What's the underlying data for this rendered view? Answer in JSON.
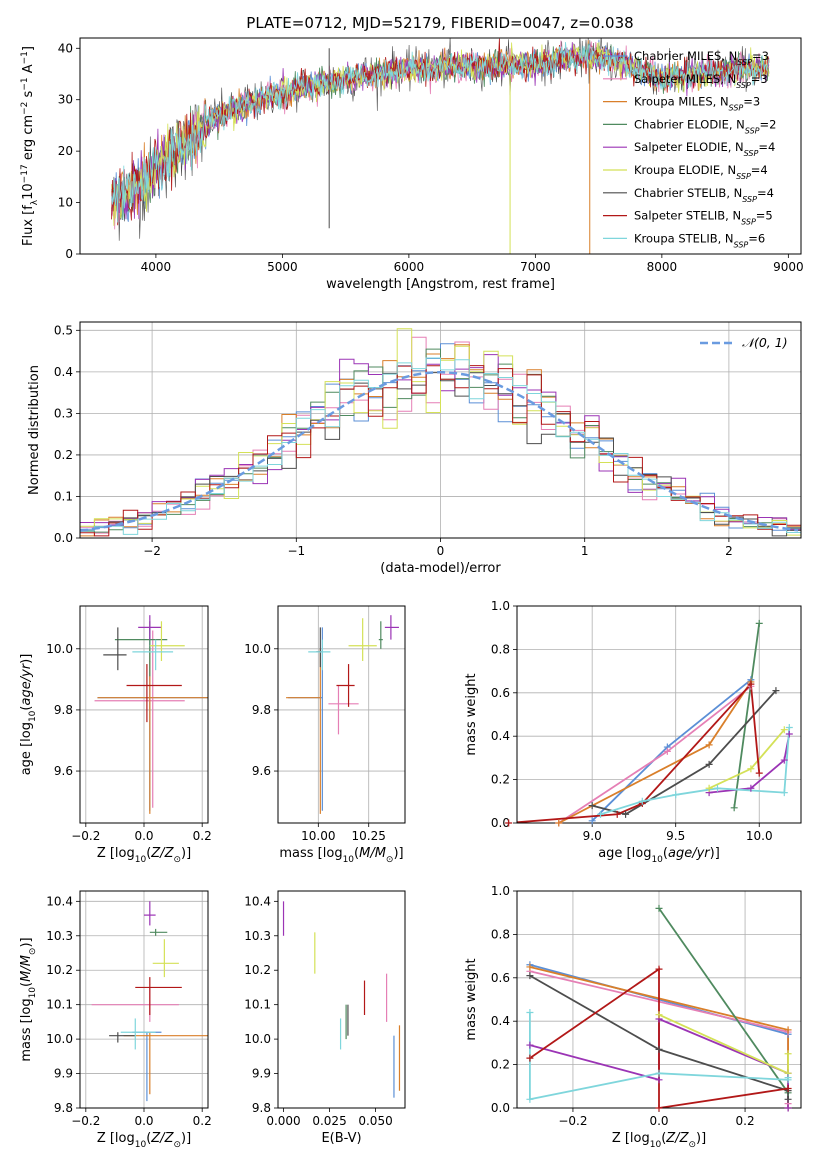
{
  "figure": {
    "title": "PLATE=0712, MJD=52179, FIBERID=0047, z=0.038"
  },
  "models": [
    {
      "name": "Chabrier MILES",
      "nssp": "3",
      "color": "#5b8fd6"
    },
    {
      "name": "Salpeter MILES",
      "nssp": "3",
      "color": "#e57fb5"
    },
    {
      "name": "Kroupa MILES",
      "nssp": "3",
      "color": "#d97f2a"
    },
    {
      "name": "Chabrier ELODIE",
      "nssp": "2",
      "color": "#4f8a5f"
    },
    {
      "name": "Salpeter ELODIE",
      "nssp": "4",
      "color": "#9b34b5"
    },
    {
      "name": "Kroupa ELODIE",
      "nssp": "4",
      "color": "#d4e157"
    },
    {
      "name": "Chabrier STELIB",
      "nssp": "4",
      "color": "#4d4d4d"
    },
    {
      "name": "Salpeter STELIB",
      "nssp": "5",
      "color": "#b21818"
    },
    {
      "name": "Kroupa STELIB",
      "nssp": "6",
      "color": "#7fd6dc"
    }
  ],
  "chart_data": [
    {
      "id": "spectrum",
      "type": "line",
      "xlabel": "wavelength [Angstrom, rest frame]",
      "ylabel": "Flux [f_λ 10^-17 erg cm^-2 s^-1 A^-1]",
      "xlim": [
        3400,
        9100
      ],
      "ylim": [
        0,
        42
      ],
      "xticks": [
        4000,
        5000,
        6000,
        7000,
        8000,
        9000
      ],
      "yticks": [
        0,
        10,
        20,
        30,
        40
      ],
      "data_range": [
        3650,
        8850
      ],
      "legend_position": "right",
      "continuum_knots": [
        [
          3650,
          10
        ],
        [
          3800,
          12
        ],
        [
          3950,
          15
        ],
        [
          4100,
          19
        ],
        [
          4300,
          23
        ],
        [
          4500,
          27
        ],
        [
          4700,
          29
        ],
        [
          4900,
          30.5
        ],
        [
          5100,
          32
        ],
        [
          5300,
          33
        ],
        [
          5600,
          34.5
        ],
        [
          6000,
          36
        ],
        [
          6500,
          36.5
        ],
        [
          7000,
          37
        ],
        [
          7400,
          38.5
        ],
        [
          7600,
          38
        ],
        [
          7800,
          36
        ],
        [
          8000,
          34
        ],
        [
          8300,
          35
        ],
        [
          8600,
          36
        ],
        [
          8850,
          36
        ]
      ],
      "spikes": [
        {
          "x": 5370,
          "y_from": 40,
          "y_to": 5,
          "series": "Chabrier STELIB"
        },
        {
          "x": 6800,
          "y_from": 35,
          "y_to": 0,
          "series": "Kroupa ELODIE"
        },
        {
          "x": 7430,
          "y_from": 37,
          "y_to": 0,
          "series": "Kroupa MILES"
        }
      ]
    },
    {
      "id": "residual-histogram",
      "type": "line",
      "xlabel": "(data-model)/error",
      "ylabel": "Normed distribution",
      "xlim": [
        -2.5,
        2.5
      ],
      "ylim": [
        0,
        0.52
      ],
      "xticks": [
        -2,
        -1,
        0,
        1,
        2
      ],
      "yticks": [
        0.0,
        0.1,
        0.2,
        0.3,
        0.4,
        0.5
      ],
      "grid": true,
      "legend_position": "top-right",
      "reference_curve": {
        "name": "𝒩(0, 1)",
        "color": "#6a9be0",
        "mean": 0,
        "sigma": 1
      },
      "bin_width": 0.1
    },
    {
      "id": "age-vs-Z",
      "type": "scatter",
      "xlabel": "Z [log10(Z/Z☉)]",
      "ylabel": "age [log10(age/yr)]",
      "xlim": [
        -0.22,
        0.22
      ],
      "ylim": [
        9.43,
        10.14
      ],
      "xticks": [
        -0.2,
        0.0,
        0.2
      ],
      "yticks": [
        9.6,
        9.8,
        10.0
      ],
      "grid": true,
      "points": [
        {
          "model": 0,
          "x": 0.02,
          "y": 9.84,
          "xerr": [
            0.18,
            0.2
          ],
          "yerr": [
            0.37,
            0.23
          ]
        },
        {
          "model": 1,
          "x": 0.03,
          "y": 9.83,
          "xerr": [
            0.2,
            0.11
          ],
          "yerr": [
            0.35,
            0.23
          ]
        },
        {
          "model": 2,
          "x": 0.02,
          "y": 9.84,
          "xerr": [
            0.18,
            0.2
          ],
          "yerr": [
            0.38,
            0.16
          ]
        },
        {
          "model": 3,
          "x": 0.02,
          "y": 10.03,
          "xerr": [
            0.12,
            0.06
          ],
          "yerr": [
            0.12,
            0.06
          ]
        },
        {
          "model": 4,
          "x": 0.02,
          "y": 10.07,
          "xerr": [
            0.04,
            0.04
          ],
          "yerr": [
            0.04,
            0.04
          ]
        },
        {
          "model": 5,
          "x": 0.06,
          "y": 10.01,
          "xerr": [
            0.04,
            0.08
          ],
          "yerr": [
            0.05,
            0.08
          ]
        },
        {
          "model": 6,
          "x": -0.09,
          "y": 9.98,
          "xerr": [
            0.05,
            0.03
          ],
          "yerr": [
            0.05,
            0.09
          ]
        },
        {
          "model": 7,
          "x": 0.01,
          "y": 9.88,
          "xerr": [
            0.07,
            0.12
          ],
          "yerr": [
            0.12,
            0.07
          ]
        },
        {
          "model": 8,
          "x": 0.04,
          "y": 9.99,
          "xerr": [
            0.08,
            0.06
          ],
          "yerr": [
            0.06,
            0.04
          ]
        }
      ]
    },
    {
      "id": "age-vs-mass",
      "type": "scatter",
      "xlabel": "mass [log10(M/M☉)]",
      "ylabel": "",
      "xlim": [
        9.8,
        10.43
      ],
      "ylim": [
        9.43,
        10.14
      ],
      "xticks": [
        10.0,
        10.25
      ],
      "yticks": [
        9.6,
        9.8,
        10.0
      ],
      "grid": true,
      "points": [
        {
          "model": 0,
          "x": 10.02,
          "y": 9.84,
          "xerr": [
            0.17,
            0.0
          ],
          "yerr": [
            0.37,
            0.23
          ]
        },
        {
          "model": 1,
          "x": 10.1,
          "y": 9.82,
          "xerr": [
            0.05,
            0.1
          ],
          "yerr": [
            0.1,
            0.06
          ]
        },
        {
          "model": 2,
          "x": 10.01,
          "y": 9.84,
          "xerr": [
            0.17,
            0.0
          ],
          "yerr": [
            0.38,
            0.16
          ]
        },
        {
          "model": 3,
          "x": 10.31,
          "y": 10.03,
          "xerr": [
            0.01,
            0.01
          ],
          "yerr": [
            0.03,
            0.06
          ]
        },
        {
          "model": 4,
          "x": 10.36,
          "y": 10.07,
          "xerr": [
            0.03,
            0.04
          ],
          "yerr": [
            0.04,
            0.04
          ]
        },
        {
          "model": 5,
          "x": 10.22,
          "y": 10.01,
          "xerr": [
            0.07,
            0.07
          ],
          "yerr": [
            0.05,
            0.09
          ]
        },
        {
          "model": 6,
          "x": 10.01,
          "y": 9.99,
          "xerr": [
            0.02,
            0.01
          ],
          "yerr": [
            0.05,
            0.08
          ]
        },
        {
          "model": 7,
          "x": 10.15,
          "y": 9.88,
          "xerr": [
            0.06,
            0.03
          ],
          "yerr": [
            0.07,
            0.07
          ]
        },
        {
          "model": 8,
          "x": 10.02,
          "y": 9.99,
          "xerr": [
            0.07,
            0.04
          ],
          "yerr": [
            0.06,
            0.04
          ]
        }
      ]
    },
    {
      "id": "massweight-vs-age",
      "type": "line",
      "xlabel": "age [log10(age/yr)]",
      "ylabel": "mass weight",
      "xlim": [
        8.55,
        10.25
      ],
      "ylim": [
        0,
        1
      ],
      "xticks": [
        9.0,
        9.5,
        10.0
      ],
      "yticks": [
        0.0,
        0.2,
        0.4,
        0.6,
        0.8,
        1.0
      ],
      "grid": true,
      "series": [
        {
          "model": 0,
          "x": [
            9.0,
            9.45,
            9.95
          ],
          "y": [
            0.01,
            0.35,
            0.66
          ]
        },
        {
          "model": 1,
          "x": [
            8.8,
            9.45,
            9.95
          ],
          "y": [
            0.0,
            0.33,
            0.63
          ]
        },
        {
          "model": 2,
          "x": [
            8.8,
            9.7,
            9.95
          ],
          "y": [
            0.0,
            0.36,
            0.65
          ]
        },
        {
          "model": 3,
          "x": [
            9.85,
            10.0
          ],
          "y": [
            0.07,
            0.92
          ]
        },
        {
          "model": 4,
          "x": [
            9.7,
            9.95,
            10.15,
            10.18
          ],
          "y": [
            0.14,
            0.16,
            0.29,
            0.41
          ]
        },
        {
          "model": 5,
          "x": [
            9.7,
            9.95,
            10.15
          ],
          "y": [
            0.16,
            0.25,
            0.43
          ]
        },
        {
          "model": 6,
          "x": [
            9.0,
            9.2,
            9.7,
            10.1
          ],
          "y": [
            0.08,
            0.04,
            0.27,
            0.61
          ]
        },
        {
          "model": 7,
          "x": [
            8.5,
            9.15,
            9.3,
            9.95,
            10.0
          ],
          "y": [
            0.0,
            0.04,
            0.09,
            0.64,
            0.23
          ]
        },
        {
          "model": 8,
          "x": [
            9.05,
            9.3,
            9.5,
            9.75,
            10.15,
            10.18
          ],
          "y": [
            0.04,
            0.1,
            0.13,
            0.16,
            0.14,
            0.44
          ]
        }
      ]
    },
    {
      "id": "mass-vs-Z",
      "type": "scatter",
      "xlabel": "Z [log10(Z/Z☉)]",
      "ylabel": "mass [log10(M/M☉)]",
      "xlim": [
        -0.22,
        0.22
      ],
      "ylim": [
        9.8,
        10.43
      ],
      "xticks": [
        -0.2,
        0.0,
        0.2
      ],
      "yticks": [
        9.8,
        9.9,
        10.0,
        10.1,
        10.2,
        10.3,
        10.4
      ],
      "grid": true,
      "points": [
        {
          "model": 0,
          "x": 0.01,
          "y": 10.02,
          "xerr": [
            0.05,
            0.05
          ],
          "yerr": [
            0.2,
            0.0
          ]
        },
        {
          "model": 1,
          "x": 0.02,
          "y": 10.1,
          "xerr": [
            0.2,
            0.1
          ],
          "yerr": [
            0.05,
            0.05
          ]
        },
        {
          "model": 2,
          "x": 0.02,
          "y": 10.01,
          "xerr": [
            0.09,
            0.2
          ],
          "yerr": [
            0.17,
            0.01
          ]
        },
        {
          "model": 3,
          "x": 0.04,
          "y": 10.31,
          "xerr": [
            0.02,
            0.04
          ],
          "yerr": [
            0.01,
            0.01
          ]
        },
        {
          "model": 4,
          "x": 0.02,
          "y": 10.36,
          "xerr": [
            0.02,
            0.02
          ],
          "yerr": [
            0.03,
            0.04
          ]
        },
        {
          "model": 5,
          "x": 0.07,
          "y": 10.22,
          "xerr": [
            0.04,
            0.05
          ],
          "yerr": [
            0.04,
            0.07
          ]
        },
        {
          "model": 6,
          "x": -0.09,
          "y": 10.01,
          "xerr": [
            0.03,
            0.06
          ],
          "yerr": [
            0.02,
            0.01
          ]
        },
        {
          "model": 7,
          "x": 0.02,
          "y": 10.15,
          "xerr": [
            0.05,
            0.11
          ],
          "yerr": [
            0.08,
            0.03
          ]
        },
        {
          "model": 8,
          "x": -0.03,
          "y": 10.02,
          "xerr": [
            0.05,
            0.07
          ],
          "yerr": [
            0.05,
            0.04
          ]
        }
      ]
    },
    {
      "id": "mass-vs-EBV",
      "type": "scatter",
      "xlabel": "E(B-V)",
      "ylabel": "",
      "xlim": [
        -0.003,
        0.066
      ],
      "ylim": [
        9.8,
        10.43
      ],
      "xticks": [
        0.0,
        0.025,
        0.05
      ],
      "yticks": [
        9.8,
        9.9,
        10.0,
        10.1,
        10.2,
        10.3,
        10.4
      ],
      "grid": false,
      "points": [
        {
          "model": 0,
          "x": 0.06,
          "y": 9.93,
          "xerr": [
            0,
            0
          ],
          "yerr": [
            0.1,
            0.08
          ]
        },
        {
          "model": 1,
          "x": 0.056,
          "y": 10.12,
          "xerr": [
            0,
            0
          ],
          "yerr": [
            0.07,
            0.07
          ]
        },
        {
          "model": 2,
          "x": 0.063,
          "y": 9.94,
          "xerr": [
            0,
            0
          ],
          "yerr": [
            0.09,
            0.1
          ]
        },
        {
          "model": 3,
          "x": 0.034,
          "y": 10.05,
          "xerr": [
            0,
            0
          ],
          "yerr": [
            0.05,
            0.05
          ]
        },
        {
          "model": 4,
          "x": 0.0,
          "y": 10.35,
          "xerr": [
            0,
            0
          ],
          "yerr": [
            0.05,
            0.05
          ]
        },
        {
          "model": 5,
          "x": 0.017,
          "y": 10.25,
          "xerr": [
            0,
            0
          ],
          "yerr": [
            0.06,
            0.06
          ]
        },
        {
          "model": 6,
          "x": 0.035,
          "y": 10.04,
          "xerr": [
            0,
            0
          ],
          "yerr": [
            0.03,
            0.06
          ]
        },
        {
          "model": 7,
          "x": 0.044,
          "y": 10.12,
          "xerr": [
            0,
            0
          ],
          "yerr": [
            0.05,
            0.05
          ]
        },
        {
          "model": 8,
          "x": 0.031,
          "y": 10.03,
          "xerr": [
            0,
            0
          ],
          "yerr": [
            0.06,
            0.03
          ]
        }
      ]
    },
    {
      "id": "massweight-vs-Z",
      "type": "line",
      "xlabel": "Z [log10(Z/Z☉)]",
      "ylabel": "mass weight",
      "xlim": [
        -0.33,
        0.33
      ],
      "ylim": [
        0,
        1
      ],
      "xticks": [
        -0.2,
        0.0,
        0.2
      ],
      "yticks": [
        0.0,
        0.2,
        0.4,
        0.6,
        0.8,
        1.0
      ],
      "grid": true,
      "series": [
        {
          "model": 0,
          "x": [
            -0.3,
            0.3,
            0.3
          ],
          "y": [
            0.66,
            0.34,
            0.0
          ]
        },
        {
          "model": 1,
          "x": [
            -0.3,
            0.3,
            0.3
          ],
          "y": [
            0.63,
            0.35,
            0.02
          ]
        },
        {
          "model": 2,
          "x": [
            -0.3,
            0.3,
            0.3
          ],
          "y": [
            0.65,
            0.36,
            0.0
          ]
        },
        {
          "model": 3,
          "x": [
            0.0,
            0.3
          ],
          "y": [
            0.92,
            0.07
          ]
        },
        {
          "model": 4,
          "x": [
            -0.3,
            0.0,
            0.0,
            0.3,
            0.3
          ],
          "y": [
            0.29,
            0.13,
            0.41,
            0.16,
            0.0
          ]
        },
        {
          "model": 5,
          "x": [
            0.0,
            0.3,
            0.3
          ],
          "y": [
            0.43,
            0.16,
            0.25
          ]
        },
        {
          "model": 6,
          "x": [
            -0.3,
            0.0,
            0.3,
            0.3
          ],
          "y": [
            0.61,
            0.27,
            0.08,
            0.04
          ]
        },
        {
          "model": 7,
          "x": [
            -0.3,
            0.0,
            0.0,
            0.3
          ],
          "y": [
            0.23,
            0.64,
            0.0,
            0.09
          ]
        },
        {
          "model": 8,
          "x": [
            -0.3,
            -0.3,
            0.0,
            0.3,
            0.3
          ],
          "y": [
            0.44,
            0.04,
            0.16,
            0.13,
            0.14
          ]
        }
      ]
    }
  ]
}
